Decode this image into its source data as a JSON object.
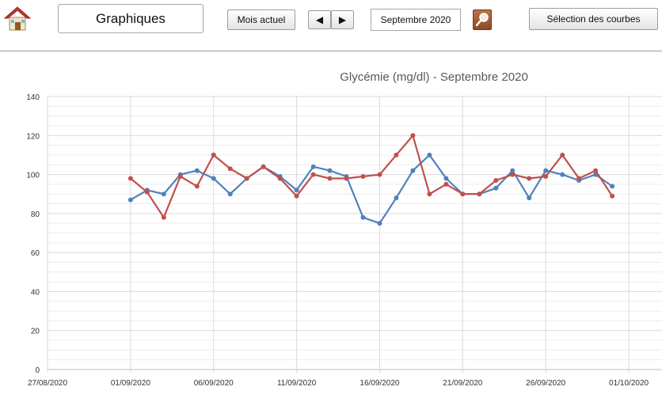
{
  "toolbar": {
    "title": "Graphiques",
    "current_month_button": "Mois actuel",
    "prev_button": "◀",
    "next_button": "▶",
    "month_value": "Septembre 2020",
    "curves_button": "Sélection des courbes",
    "home_icon": "home-icon",
    "search_icon": "magnifier-icon"
  },
  "chart_data": {
    "type": "line",
    "title": "Glycémie (mg/dl) - Septembre 2020",
    "xlabel": "",
    "ylabel": "",
    "ylim": [
      0,
      140
    ],
    "yticks": [
      0,
      20,
      40,
      60,
      80,
      100,
      120,
      140
    ],
    "xlim": [
      "2020-08-27",
      "2020-10-03"
    ],
    "xtick_labels": [
      "27/08/2020",
      "01/09/2020",
      "06/09/2020",
      "11/09/2020",
      "16/09/2020",
      "21/09/2020",
      "26/09/2020",
      "01/10/2020"
    ],
    "xtick_dates": [
      "2020-08-27",
      "2020-09-01",
      "2020-09-06",
      "2020-09-11",
      "2020-09-16",
      "2020-09-21",
      "2020-09-26",
      "2020-10-01"
    ],
    "grid": true,
    "x": [
      "2020-09-01",
      "2020-09-02",
      "2020-09-03",
      "2020-09-04",
      "2020-09-05",
      "2020-09-06",
      "2020-09-07",
      "2020-09-08",
      "2020-09-09",
      "2020-09-10",
      "2020-09-11",
      "2020-09-12",
      "2020-09-13",
      "2020-09-14",
      "2020-09-15",
      "2020-09-16",
      "2020-09-17",
      "2020-09-18",
      "2020-09-19",
      "2020-09-20",
      "2020-09-21",
      "2020-09-22",
      "2020-09-23",
      "2020-09-24",
      "2020-09-25",
      "2020-09-26",
      "2020-09-27",
      "2020-09-28",
      "2020-09-29",
      "2020-09-30"
    ],
    "series": [
      {
        "color": "#4f81bd",
        "values": [
          87,
          92,
          90,
          100,
          102,
          98,
          90,
          98,
          104,
          99,
          92,
          104,
          102,
          99,
          78,
          75,
          88,
          102,
          110,
          98,
          90,
          90,
          93,
          102,
          88,
          102,
          100,
          97,
          100,
          94
        ]
      },
      {
        "color": "#c0504d",
        "values": [
          98,
          91,
          78,
          99,
          94,
          110,
          103,
          98,
          104,
          98,
          89,
          100,
          98,
          98,
          99,
          100,
          110,
          120,
          90,
          95,
          90,
          90,
          97,
          100,
          98,
          99,
          110,
          98,
          102,
          89
        ]
      }
    ]
  }
}
